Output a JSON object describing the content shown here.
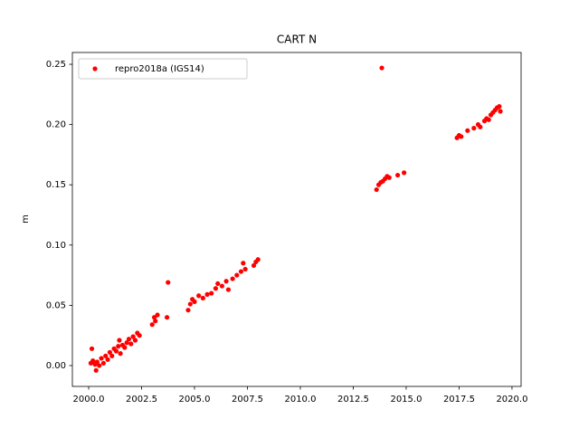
{
  "chart_data": {
    "type": "scatter",
    "title": "CART N",
    "ylabel": "m",
    "x": [
      2000.1,
      2000.15,
      2000.2,
      2000.3,
      2000.35,
      2000.4,
      2000.5,
      2000.6,
      2000.7,
      2000.8,
      2000.9,
      2001.0,
      2001.1,
      2001.2,
      2001.3,
      2001.4,
      2001.45,
      2001.5,
      2001.6,
      2001.7,
      2001.8,
      2001.9,
      2002.0,
      2002.1,
      2002.2,
      2002.3,
      2002.4,
      2003.0,
      2003.1,
      2003.15,
      2003.25,
      2003.7,
      2003.75,
      2004.7,
      2004.8,
      2004.9,
      2005.0,
      2005.2,
      2005.4,
      2005.6,
      2005.8,
      2006.0,
      2006.1,
      2006.3,
      2006.5,
      2006.6,
      2006.8,
      2007.0,
      2007.2,
      2007.3,
      2007.4,
      2007.8,
      2007.9,
      2008.0,
      2013.6,
      2013.7,
      2013.8,
      2013.85,
      2013.9,
      2014.0,
      2014.1,
      2014.2,
      2014.6,
      2014.9,
      2017.4,
      2017.5,
      2017.6,
      2017.9,
      2018.2,
      2018.4,
      2018.5,
      2018.7,
      2018.8,
      2018.9,
      2019.0,
      2019.1,
      2019.2,
      2019.3,
      2019.4,
      2019.45
    ],
    "series": [
      {
        "name": "repro2018a (IGS14)",
        "color": "#ff0000",
        "values": [
          0.002,
          0.014,
          0.004,
          0.001,
          -0.004,
          0.003,
          0.0,
          0.006,
          0.002,
          0.008,
          0.005,
          0.011,
          0.008,
          0.014,
          0.012,
          0.016,
          0.021,
          0.01,
          0.017,
          0.015,
          0.019,
          0.022,
          0.018,
          0.024,
          0.021,
          0.027,
          0.025,
          0.034,
          0.04,
          0.037,
          0.042,
          0.04,
          0.069,
          0.046,
          0.051,
          0.055,
          0.053,
          0.058,
          0.056,
          0.059,
          0.06,
          0.064,
          0.068,
          0.066,
          0.07,
          0.063,
          0.072,
          0.075,
          0.078,
          0.085,
          0.08,
          0.083,
          0.086,
          0.088,
          0.146,
          0.15,
          0.152,
          0.247,
          0.153,
          0.155,
          0.157,
          0.156,
          0.158,
          0.16,
          0.189,
          0.191,
          0.19,
          0.195,
          0.197,
          0.2,
          0.198,
          0.203,
          0.205,
          0.204,
          0.208,
          0.21,
          0.212,
          0.214,
          0.215,
          0.211
        ]
      }
    ],
    "xlim": [
      1999.23,
      2020.43
    ],
    "xticks": [
      {
        "value": 2000,
        "label": "2000.0"
      },
      {
        "value": 2002.5,
        "label": "2002.5"
      },
      {
        "value": 2005,
        "label": "2005.0"
      },
      {
        "value": 2007.5,
        "label": "2007.5"
      },
      {
        "value": 2010,
        "label": "2010.0"
      },
      {
        "value": 2012.5,
        "label": "2012.5"
      },
      {
        "value": 2015,
        "label": "2015.0"
      },
      {
        "value": 2017.5,
        "label": "2017.5"
      },
      {
        "value": 2020,
        "label": "2020.0"
      }
    ],
    "ylim": [
      -0.0173,
      0.2598
    ],
    "yticks": [
      {
        "value": 0,
        "label": "0.00"
      },
      {
        "value": 0.05,
        "label": "0.05"
      },
      {
        "value": 0.1,
        "label": "0.10"
      },
      {
        "value": 0.15,
        "label": "0.15"
      },
      {
        "value": 0.2,
        "label": "0.20"
      },
      {
        "value": 0.25,
        "label": "0.25"
      }
    ],
    "legend": "upper left",
    "grid": false
  }
}
